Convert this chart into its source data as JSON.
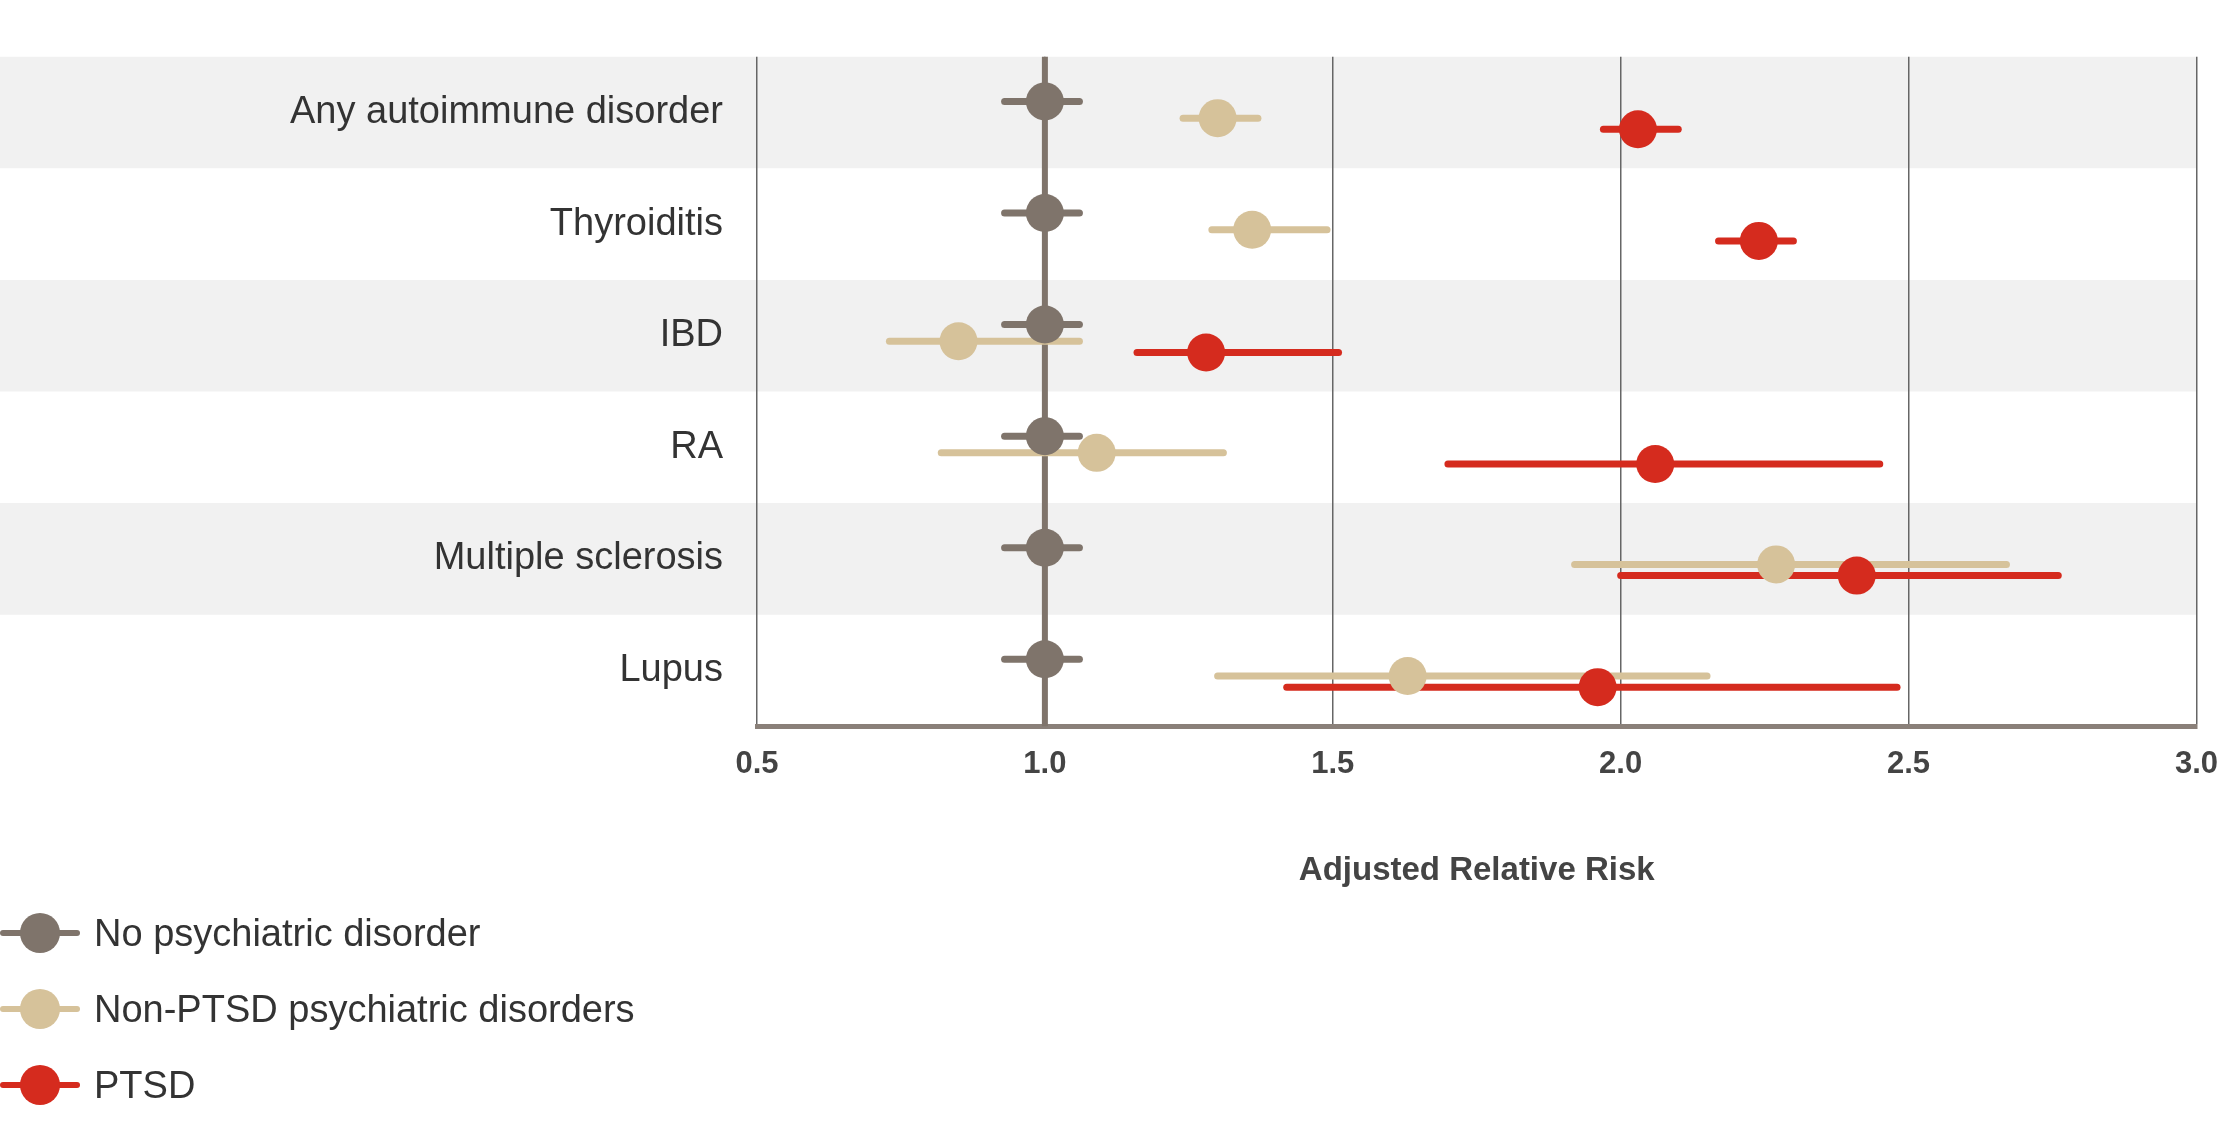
{
  "chart_data": {
    "type": "scatter",
    "orientation": "horizontal",
    "categories": [
      "Any autoimmune disorder",
      "Thyroiditis",
      "IBD",
      "RA",
      "Multiple sclerosis",
      "Lupus"
    ],
    "xlabel": "Adjusted Relative Risk",
    "xlim": [
      0.5,
      3.0
    ],
    "xticks": [
      {
        "value": 0.5,
        "label": "0.5"
      },
      {
        "value": 1,
        "label": "1.0"
      },
      {
        "value": 1.5,
        "label": "1.5"
      },
      {
        "value": 2,
        "label": "2.0"
      },
      {
        "value": 2.5,
        "label": "2.5"
      },
      {
        "value": 3,
        "label": "3.0"
      }
    ],
    "grid": "x",
    "legend": "bottom left",
    "marker": "circle",
    "ref_lines": [
      {
        "axis": "x",
        "value": 1,
        "color": "#7f746b"
      }
    ],
    "bands": [
      {
        "axis": "y",
        "from": "Any autoimmune disorder",
        "to": "Any autoimmune disorder",
        "color": "#f1f1f1"
      },
      {
        "axis": "y",
        "from": "IBD",
        "to": "IBD",
        "color": "#f1f1f1"
      },
      {
        "axis": "y",
        "from": "Multiple sclerosis",
        "to": "Multiple sclerosis",
        "color": "#f1f1f1"
      }
    ],
    "series": [
      {
        "name": "No psychiatric disorder",
        "color": "#7f746b",
        "values": [
          1,
          1,
          1,
          1,
          1,
          1
        ],
        "errors": [
          [
            0.93,
            1.06
          ],
          [
            0.93,
            1.06
          ],
          [
            0.93,
            1.06
          ],
          [
            0.93,
            1.06
          ],
          [
            0.93,
            1.06
          ],
          [
            0.93,
            1.06
          ]
        ]
      },
      {
        "name": "Non-PTSD psychiatric disorders",
        "color": "#d6c29a",
        "values": [
          1.3,
          1.36,
          0.85,
          1.09,
          2.27,
          1.63
        ],
        "errors": [
          [
            1.24,
            1.37
          ],
          [
            1.29,
            1.49
          ],
          [
            0.73,
            1.06
          ],
          [
            0.82,
            1.31
          ],
          [
            1.92,
            2.67
          ],
          [
            1.3,
            2.15
          ]
        ]
      },
      {
        "name": "PTSD",
        "color": "#d52b1e",
        "values": [
          2.03,
          2.24,
          1.28,
          2.06,
          2.41,
          1.96
        ],
        "errors": [
          [
            1.97,
            2.1
          ],
          [
            2.17,
            2.3
          ],
          [
            1.16,
            1.51
          ],
          [
            1.7,
            2.45
          ],
          [
            2.0,
            2.76
          ],
          [
            1.42,
            2.48
          ]
        ]
      }
    ]
  }
}
